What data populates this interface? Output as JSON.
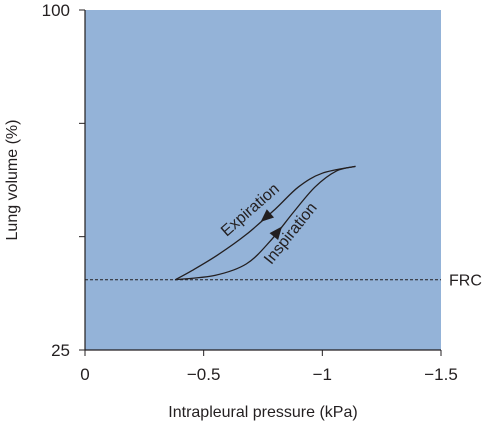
{
  "chart_data": {
    "type": "line",
    "plot_background": "#94b3d8",
    "line_color": "#231f20",
    "xlabel": "Intrapleural pressure (kPa)",
    "ylabel": "Lung volume (%)",
    "x_reversed": true,
    "xlim": [
      0,
      -1.5
    ],
    "ylim": [
      25,
      100
    ],
    "x_ticks": [
      {
        "value": 0,
        "label": "0"
      },
      {
        "value": -0.5,
        "label": "−0.5"
      },
      {
        "value": -1,
        "label": "−1"
      },
      {
        "value": -1.5,
        "label": "−1.5"
      }
    ],
    "y_tick_marks": [
      25,
      50,
      75,
      100
    ],
    "y_tick_labels": [
      {
        "value": 100,
        "label": "100"
      },
      {
        "value": 25,
        "label": "25"
      }
    ],
    "reference_line": {
      "y": 40.5,
      "style": "dashed",
      "label": "FRC"
    },
    "series": [
      {
        "name": "Inspiration",
        "direction": "up",
        "x": [
          -0.38,
          -0.55,
          -0.68,
          -0.78,
          -0.88,
          -0.97,
          -1.06,
          -1.14
        ],
        "y": [
          40.5,
          41.5,
          44,
          49,
          55.5,
          61,
          64.5,
          65.5
        ]
      },
      {
        "name": "Expiration",
        "direction": "down",
        "x": [
          -1.14,
          -1.0,
          -0.9,
          -0.8,
          -0.68,
          -0.56,
          -0.45,
          -0.38
        ],
        "y": [
          65.5,
          64,
          61,
          56,
          50.5,
          46,
          42.5,
          40.5
        ]
      }
    ]
  }
}
